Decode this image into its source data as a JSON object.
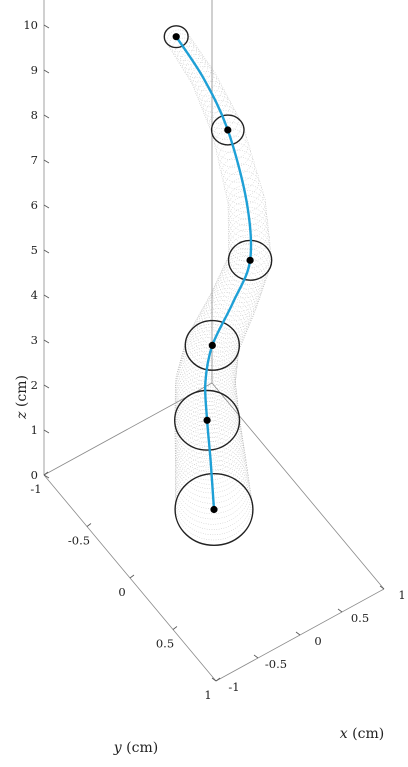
{
  "chart_data": {
    "type": "line3d",
    "axes": {
      "x": {
        "label_var": "x",
        "label_unit": " (cm)",
        "lim": [
          -1,
          1
        ],
        "ticks": [
          "-1",
          "-0.5",
          "0",
          "0.5",
          "1"
        ]
      },
      "y": {
        "label_var": "y",
        "label_unit": " (cm)",
        "lim": [
          -1,
          1
        ],
        "ticks": [
          "-1",
          "-0.5",
          "0",
          "0.5",
          "1"
        ]
      },
      "z": {
        "label_var": "z",
        "label_unit": " (cm)",
        "lim": [
          0,
          10
        ],
        "ticks": [
          "0",
          "1",
          "2",
          "3",
          "4",
          "5",
          "6",
          "7",
          "8",
          "9",
          "10"
        ]
      }
    },
    "grid": false,
    "box": "open-frame",
    "backbone": {
      "color": "#1ea0d6",
      "points": [
        [
          0.0,
          0.0,
          0.5
        ],
        [
          0.0,
          -0.04,
          1.5
        ],
        [
          0.0,
          -0.08,
          2.3
        ],
        [
          0.0,
          -0.1,
          3.1
        ],
        [
          0.0,
          -0.02,
          4.1
        ],
        [
          0.0,
          0.22,
          5.6
        ],
        [
          0.0,
          0.42,
          7.0
        ],
        [
          0.0,
          0.38,
          8.2
        ],
        [
          0.0,
          0.16,
          9.3
        ],
        [
          0.0,
          -0.12,
          9.8
        ],
        [
          0.0,
          -0.44,
          10.0
        ]
      ]
    },
    "cross_sections": [
      {
        "center": [
          0.0,
          0.0,
          0.5
        ],
        "radius": 0.36,
        "dot_color": "#000000",
        "ring_color": "#222222"
      },
      {
        "center": [
          0.0,
          -0.08,
          2.3
        ],
        "radius": 0.3,
        "dot_color": "#000000",
        "ring_color": "#222222"
      },
      {
        "center": [
          0.0,
          -0.02,
          4.1
        ],
        "radius": 0.25,
        "dot_color": "#000000",
        "ring_color": "#222222"
      },
      {
        "center": [
          0.0,
          0.42,
          7.0
        ],
        "radius": 0.2,
        "dot_color": "#000000",
        "ring_color": "#222222"
      },
      {
        "center": [
          0.0,
          0.16,
          9.3
        ],
        "radius": 0.15,
        "dot_color": "#000000",
        "ring_color": "#222222"
      },
      {
        "center": [
          0.0,
          -0.44,
          10.0
        ],
        "radius": 0.11,
        "dot_color": "#000000",
        "ring_color": "#222222"
      }
    ],
    "surface": {
      "style": "dotted-mesh",
      "color": "#9a9a9a"
    }
  }
}
